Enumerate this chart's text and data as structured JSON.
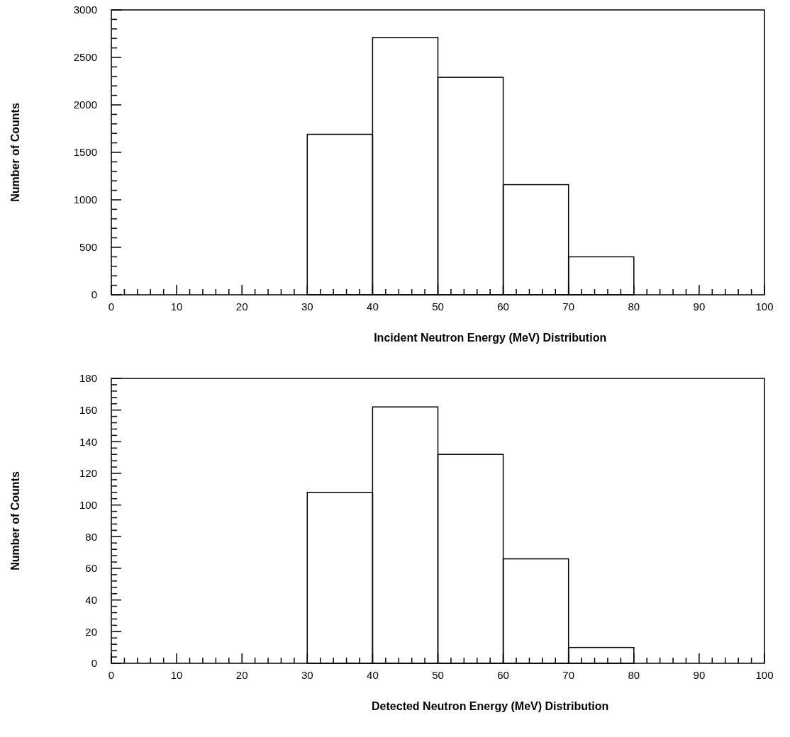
{
  "chart_data": [
    {
      "type": "histogram",
      "xlabel": "Incident Neutron Energy (MeV) Distribution",
      "ylabel": "Number of Counts",
      "bins": [
        30,
        40,
        50,
        60,
        70,
        80
      ],
      "values": [
        1690,
        2710,
        2290,
        1160,
        400
      ],
      "color": "#000000",
      "xlim": [
        0,
        100
      ],
      "ylim": [
        0,
        3000
      ],
      "xticks": [
        0,
        {
          "value": 2,
          "label": null
        },
        {
          "value": 4,
          "label": null
        },
        {
          "value": 6,
          "label": null
        },
        {
          "value": 8,
          "label": null
        },
        10,
        {
          "value": 12,
          "label": null
        },
        {
          "value": 14,
          "label": null
        },
        {
          "value": 16,
          "label": null
        },
        {
          "value": 18,
          "label": null
        },
        20,
        {
          "value": 22,
          "label": null
        },
        {
          "value": 24,
          "label": null
        },
        {
          "value": 26,
          "label": null
        },
        {
          "value": 28,
          "label": null
        },
        30,
        {
          "value": 32,
          "label": null
        },
        {
          "value": 34,
          "label": null
        },
        {
          "value": 36,
          "label": null
        },
        {
          "value": 38,
          "label": null
        },
        40,
        {
          "value": 42,
          "label": null
        },
        {
          "value": 44,
          "label": null
        },
        {
          "value": 46,
          "label": null
        },
        {
          "value": 48,
          "label": null
        },
        50,
        {
          "value": 52,
          "label": null
        },
        {
          "value": 54,
          "label": null
        },
        {
          "value": 56,
          "label": null
        },
        {
          "value": 58,
          "label": null
        },
        60,
        {
          "value": 62,
          "label": null
        },
        {
          "value": 64,
          "label": null
        },
        {
          "value": 66,
          "label": null
        },
        {
          "value": 68,
          "label": null
        },
        70,
        {
          "value": 72,
          "label": null
        },
        {
          "value": 74,
          "label": null
        },
        {
          "value": 76,
          "label": null
        },
        {
          "value": 78,
          "label": null
        },
        80,
        {
          "value": 82,
          "label": null
        },
        {
          "value": 84,
          "label": null
        },
        {
          "value": 86,
          "label": null
        },
        {
          "value": 88,
          "label": null
        },
        90,
        {
          "value": 92,
          "label": null
        },
        {
          "value": 94,
          "label": null
        },
        {
          "value": 96,
          "label": null
        },
        {
          "value": 98,
          "label": null
        },
        100
      ],
      "yticks": [
        0,
        {
          "value": 100,
          "label": null
        },
        {
          "value": 200,
          "label": null
        },
        {
          "value": 300,
          "label": null
        },
        {
          "value": 400,
          "label": null
        },
        500,
        {
          "value": 600,
          "label": null
        },
        {
          "value": 700,
          "label": null
        },
        {
          "value": 800,
          "label": null
        },
        {
          "value": 900,
          "label": null
        },
        1000,
        {
          "value": 1100,
          "label": null
        },
        {
          "value": 1200,
          "label": null
        },
        {
          "value": 1300,
          "label": null
        },
        {
          "value": 1400,
          "label": null
        },
        1500,
        {
          "value": 1600,
          "label": null
        },
        {
          "value": 1700,
          "label": null
        },
        {
          "value": 1800,
          "label": null
        },
        {
          "value": 1900,
          "label": null
        },
        2000,
        {
          "value": 2100,
          "label": null
        },
        {
          "value": 2200,
          "label": null
        },
        {
          "value": 2300,
          "label": null
        },
        {
          "value": 2400,
          "label": null
        },
        2500,
        {
          "value": 2600,
          "label": null
        },
        {
          "value": 2700,
          "label": null
        },
        {
          "value": 2800,
          "label": null
        },
        {
          "value": 2900,
          "label": null
        },
        3000
      ]
    },
    {
      "type": "histogram",
      "xlabel": "Detected Neutron Energy (MeV) Distribution",
      "ylabel": "Number of Counts",
      "bins": [
        30,
        40,
        50,
        60,
        70,
        80
      ],
      "values": [
        108,
        162,
        132,
        66,
        10
      ],
      "color": "#000000",
      "xlim": [
        0,
        100
      ],
      "ylim": [
        0,
        180
      ],
      "xticks": [
        0,
        {
          "value": 2,
          "label": null
        },
        {
          "value": 4,
          "label": null
        },
        {
          "value": 6,
          "label": null
        },
        {
          "value": 8,
          "label": null
        },
        10,
        {
          "value": 12,
          "label": null
        },
        {
          "value": 14,
          "label": null
        },
        {
          "value": 16,
          "label": null
        },
        {
          "value": 18,
          "label": null
        },
        20,
        {
          "value": 22,
          "label": null
        },
        {
          "value": 24,
          "label": null
        },
        {
          "value": 26,
          "label": null
        },
        {
          "value": 28,
          "label": null
        },
        30,
        {
          "value": 32,
          "label": null
        },
        {
          "value": 34,
          "label": null
        },
        {
          "value": 36,
          "label": null
        },
        {
          "value": 38,
          "label": null
        },
        40,
        {
          "value": 42,
          "label": null
        },
        {
          "value": 44,
          "label": null
        },
        {
          "value": 46,
          "label": null
        },
        {
          "value": 48,
          "label": null
        },
        50,
        {
          "value": 52,
          "label": null
        },
        {
          "value": 54,
          "label": null
        },
        {
          "value": 56,
          "label": null
        },
        {
          "value": 58,
          "label": null
        },
        60,
        {
          "value": 62,
          "label": null
        },
        {
          "value": 64,
          "label": null
        },
        {
          "value": 66,
          "label": null
        },
        {
          "value": 68,
          "label": null
        },
        70,
        {
          "value": 72,
          "label": null
        },
        {
          "value": 74,
          "label": null
        },
        {
          "value": 76,
          "label": null
        },
        {
          "value": 78,
          "label": null
        },
        80,
        {
          "value": 82,
          "label": null
        },
        {
          "value": 84,
          "label": null
        },
        {
          "value": 86,
          "label": null
        },
        {
          "value": 88,
          "label": null
        },
        90,
        {
          "value": 92,
          "label": null
        },
        {
          "value": 94,
          "label": null
        },
        {
          "value": 96,
          "label": null
        },
        {
          "value": 98,
          "label": null
        },
        100
      ],
      "yticks": [
        0,
        {
          "value": 4,
          "label": null
        },
        {
          "value": 8,
          "label": null
        },
        {
          "value": 12,
          "label": null
        },
        {
          "value": 16,
          "label": null
        },
        20,
        {
          "value": 24,
          "label": null
        },
        {
          "value": 28,
          "label": null
        },
        {
          "value": 32,
          "label": null
        },
        {
          "value": 36,
          "label": null
        },
        40,
        {
          "value": 44,
          "label": null
        },
        {
          "value": 48,
          "label": null
        },
        {
          "value": 52,
          "label": null
        },
        {
          "value": 56,
          "label": null
        },
        60,
        {
          "value": 64,
          "label": null
        },
        {
          "value": 68,
          "label": null
        },
        {
          "value": 72,
          "label": null
        },
        {
          "value": 76,
          "label": null
        },
        80,
        {
          "value": 84,
          "label": null
        },
        {
          "value": 88,
          "label": null
        },
        {
          "value": 92,
          "label": null
        },
        {
          "value": 96,
          "label": null
        },
        100,
        {
          "value": 104,
          "label": null
        },
        {
          "value": 108,
          "label": null
        },
        {
          "value": 112,
          "label": null
        },
        {
          "value": 116,
          "label": null
        },
        120,
        {
          "value": 124,
          "label": null
        },
        {
          "value": 128,
          "label": null
        },
        {
          "value": 132,
          "label": null
        },
        {
          "value": 136,
          "label": null
        },
        140,
        {
          "value": 144,
          "label": null
        },
        {
          "value": 148,
          "label": null
        },
        {
          "value": 152,
          "label": null
        },
        {
          "value": 156,
          "label": null
        },
        160,
        {
          "value": 164,
          "label": null
        },
        {
          "value": 168,
          "label": null
        },
        {
          "value": 172,
          "label": null
        },
        {
          "value": 176,
          "label": null
        },
        180
      ]
    }
  ]
}
